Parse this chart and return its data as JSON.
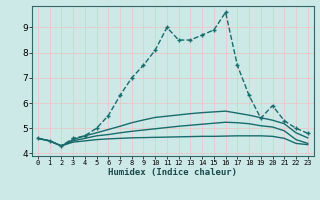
{
  "xlabel": "Humidex (Indice chaleur)",
  "ylabel": "",
  "xlim": [
    -0.5,
    23.5
  ],
  "ylim": [
    3.9,
    9.85
  ],
  "yticks": [
    4,
    5,
    6,
    7,
    8,
    9
  ],
  "xtick_labels": [
    "0",
    "1",
    "2",
    "3",
    "4",
    "5",
    "6",
    "7",
    "8",
    "9",
    "10",
    "11",
    "12",
    "13",
    "14",
    "15",
    "16",
    "17",
    "18",
    "19",
    "20",
    "21",
    "22",
    "23"
  ],
  "bg_color": "#cce9e8",
  "grid_color": "#e8c8c8",
  "line_color": "#1a6b6b",
  "lines": [
    {
      "x": [
        0,
        1,
        2,
        3,
        4,
        5,
        6,
        7,
        8,
        9,
        10,
        11,
        12,
        13,
        14,
        15,
        16,
        17,
        18,
        19,
        20,
        21,
        22,
        23
      ],
      "y": [
        4.6,
        4.5,
        4.3,
        4.6,
        4.7,
        5.0,
        5.5,
        6.3,
        7.0,
        7.5,
        8.1,
        9.0,
        8.5,
        8.5,
        8.7,
        8.9,
        9.6,
        7.5,
        6.3,
        5.4,
        5.9,
        5.3,
        5.0,
        4.8
      ],
      "marker": "+",
      "markersize": 3.5,
      "linewidth": 1.0,
      "linestyle": "--"
    },
    {
      "x": [
        0,
        1,
        2,
        3,
        4,
        5,
        6,
        7,
        8,
        9,
        10,
        11,
        12,
        13,
        14,
        15,
        16,
        17,
        18,
        19,
        20,
        21,
        22,
        23
      ],
      "y": [
        4.6,
        4.5,
        4.3,
        4.45,
        4.5,
        4.55,
        4.58,
        4.6,
        4.62,
        4.63,
        4.64,
        4.65,
        4.66,
        4.67,
        4.68,
        4.68,
        4.69,
        4.7,
        4.7,
        4.7,
        4.68,
        4.6,
        4.4,
        4.35
      ],
      "marker": null,
      "markersize": 0,
      "linewidth": 1.0,
      "linestyle": "-"
    },
    {
      "x": [
        0,
        1,
        2,
        3,
        4,
        5,
        6,
        7,
        8,
        9,
        10,
        11,
        12,
        13,
        14,
        15,
        16,
        17,
        18,
        19,
        20,
        21,
        22,
        23
      ],
      "y": [
        4.6,
        4.5,
        4.3,
        4.5,
        4.6,
        4.7,
        4.75,
        4.82,
        4.88,
        4.93,
        4.98,
        5.03,
        5.08,
        5.12,
        5.16,
        5.2,
        5.24,
        5.22,
        5.18,
        5.1,
        5.05,
        4.9,
        4.55,
        4.4
      ],
      "marker": null,
      "markersize": 0,
      "linewidth": 1.0,
      "linestyle": "-"
    },
    {
      "x": [
        0,
        1,
        2,
        3,
        4,
        5,
        6,
        7,
        8,
        9,
        10,
        11,
        12,
        13,
        14,
        15,
        16,
        17,
        18,
        19,
        20,
        21,
        22,
        23
      ],
      "y": [
        4.6,
        4.5,
        4.3,
        4.55,
        4.7,
        4.82,
        4.95,
        5.08,
        5.22,
        5.33,
        5.43,
        5.48,
        5.53,
        5.58,
        5.62,
        5.65,
        5.68,
        5.6,
        5.52,
        5.42,
        5.32,
        5.18,
        4.82,
        4.62
      ],
      "marker": null,
      "markersize": 0,
      "linewidth": 1.0,
      "linestyle": "-"
    }
  ]
}
